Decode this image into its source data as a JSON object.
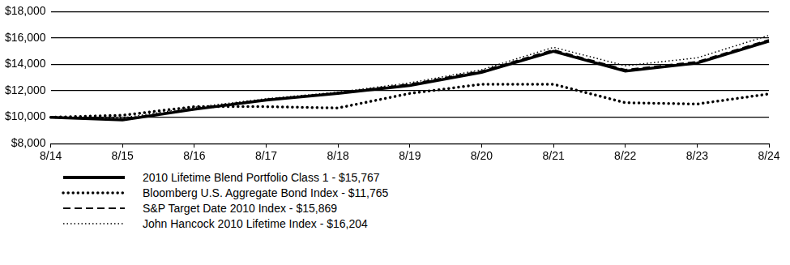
{
  "chart_data": {
    "type": "line",
    "categories": [
      "8/14",
      "8/15",
      "8/16",
      "8/17",
      "8/18",
      "8/19",
      "8/20",
      "8/21",
      "8/22",
      "8/23",
      "8/24"
    ],
    "series": [
      {
        "name": "2010 Lifetime Blend Portfolio Class 1 - $15,767",
        "color": "#000000",
        "line_style": "solid",
        "values": [
          10000,
          9800,
          10600,
          11300,
          11800,
          12400,
          13400,
          15000,
          13500,
          14100,
          15767
        ]
      },
      {
        "name": "Bloomberg U.S. Aggregate Bond Index - $11,765",
        "color": "#000000",
        "line_style": "dotted",
        "values": [
          10000,
          10150,
          10800,
          10800,
          10700,
          11800,
          12500,
          12500,
          11100,
          11000,
          11765
        ]
      },
      {
        "name": "S&P Target Date 2010 Index - $15,869",
        "color": "#000000",
        "line_style": "dashed",
        "values": [
          10000,
          9850,
          10650,
          11350,
          11850,
          12500,
          13500,
          15100,
          13600,
          14200,
          15869
        ]
      },
      {
        "name": "John Hancock 2010 Lifetime Index - $16,204",
        "color": "#000000",
        "line_style": "finedotted",
        "values": [
          10000,
          9950,
          10750,
          11400,
          11900,
          12600,
          13600,
          15300,
          13900,
          14500,
          16204
        ]
      }
    ],
    "ylim": [
      8000,
      18000
    ],
    "yticks": [
      {
        "value": 8000,
        "label": "$8,000"
      },
      {
        "value": 10000,
        "label": "$10,000"
      },
      {
        "value": 12000,
        "label": "$12,000"
      },
      {
        "value": 14000,
        "label": "$14,000"
      },
      {
        "value": 16000,
        "label": "$16,000"
      },
      {
        "value": 18000,
        "label": "$18,000"
      }
    ],
    "grid": true,
    "legend": "bottom",
    "marker": "none"
  }
}
